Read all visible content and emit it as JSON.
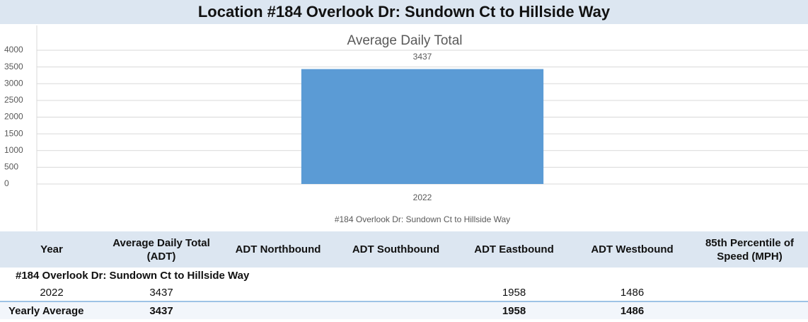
{
  "header": {
    "title": "Location #184 Overlook Dr: Sundown Ct to Hillside Way"
  },
  "chart_data": {
    "type": "bar",
    "title": "Average Daily Total",
    "categories": [
      "2022"
    ],
    "values": [
      3437
    ],
    "color": "#5b9bd5",
    "xlabel": "#184 Overlook Dr: Sundown Ct to Hillside Way",
    "ylim": [
      0,
      4000
    ],
    "yticks": [
      0,
      500,
      1000,
      1500,
      2000,
      2500,
      3000,
      3500,
      4000
    ],
    "grid": true
  },
  "table": {
    "columns": [
      "Year",
      "Average Daily Total (ADT)",
      "ADT Northbound",
      "ADT Southbound",
      "ADT Eastbound",
      "ADT Westbound",
      "85th Percentile of Speed (MPH)"
    ],
    "group": "#184 Overlook Dr: Sundown Ct to Hillside Way",
    "rows": [
      {
        "year": "2022",
        "adt": 3437,
        "eastbound": 1958,
        "westbound": 1486
      }
    ],
    "average": {
      "year": "Yearly Average",
      "adt": 3437,
      "eastbound": 1958,
      "westbound": 1486
    }
  }
}
